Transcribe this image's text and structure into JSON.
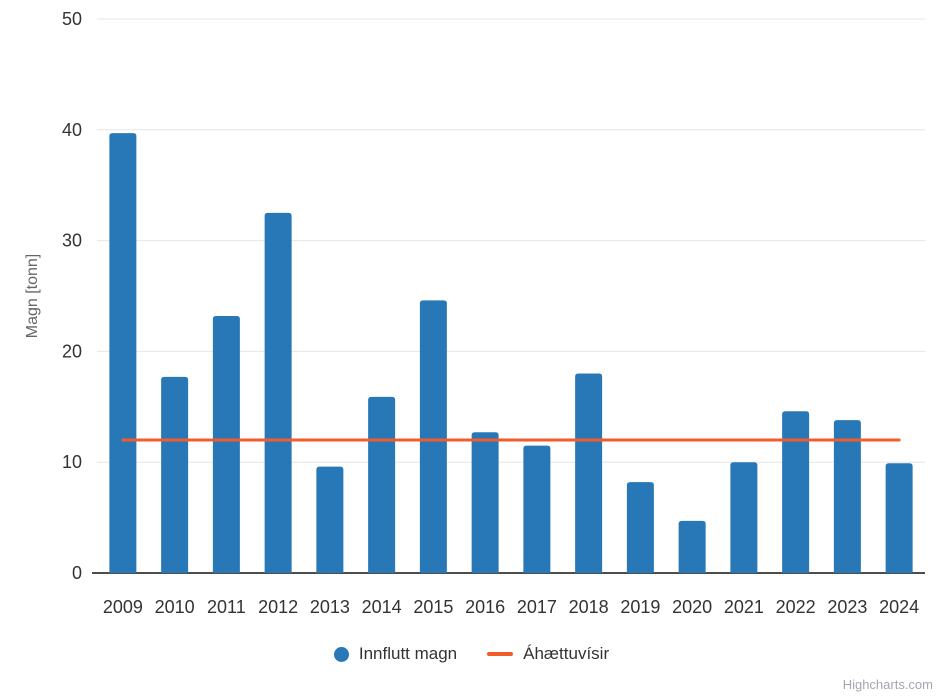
{
  "chart_data": {
    "type": "bar",
    "categories": [
      "2009",
      "2010",
      "2011",
      "2012",
      "2013",
      "2014",
      "2015",
      "2016",
      "2017",
      "2018",
      "2019",
      "2020",
      "2021",
      "2022",
      "2023",
      "2024"
    ],
    "series": [
      {
        "name": "Innflutt magn",
        "type": "column",
        "color": "#2878b8",
        "values": [
          39.7,
          17.7,
          23.2,
          32.5,
          9.6,
          15.9,
          24.6,
          12.7,
          11.5,
          18.0,
          8.2,
          4.7,
          10.0,
          14.6,
          13.8,
          9.9
        ]
      },
      {
        "name": "Áhættuvísir",
        "type": "line",
        "color": "#f25c2d",
        "values": [
          12,
          12,
          12,
          12,
          12,
          12,
          12,
          12,
          12,
          12,
          12,
          12,
          12,
          12,
          12,
          12
        ]
      }
    ],
    "title": "",
    "xlabel": "",
    "ylabel": "Magn [tonn]",
    "ylim": [
      0,
      50
    ],
    "ytick_step": 10,
    "yticks": [
      0,
      10,
      20,
      30,
      40,
      50
    ],
    "grid": true,
    "legend_position": "bottom"
  },
  "colors": {
    "background": "#ffffff",
    "grid": "#e6e6e6",
    "axis_line": "#4d4d4d",
    "tick_label": "#333333",
    "axis_title": "#666666",
    "legend_text": "#333333",
    "credit_text": "#a6a6b0"
  },
  "credit": {
    "label": "Highcharts.com"
  }
}
